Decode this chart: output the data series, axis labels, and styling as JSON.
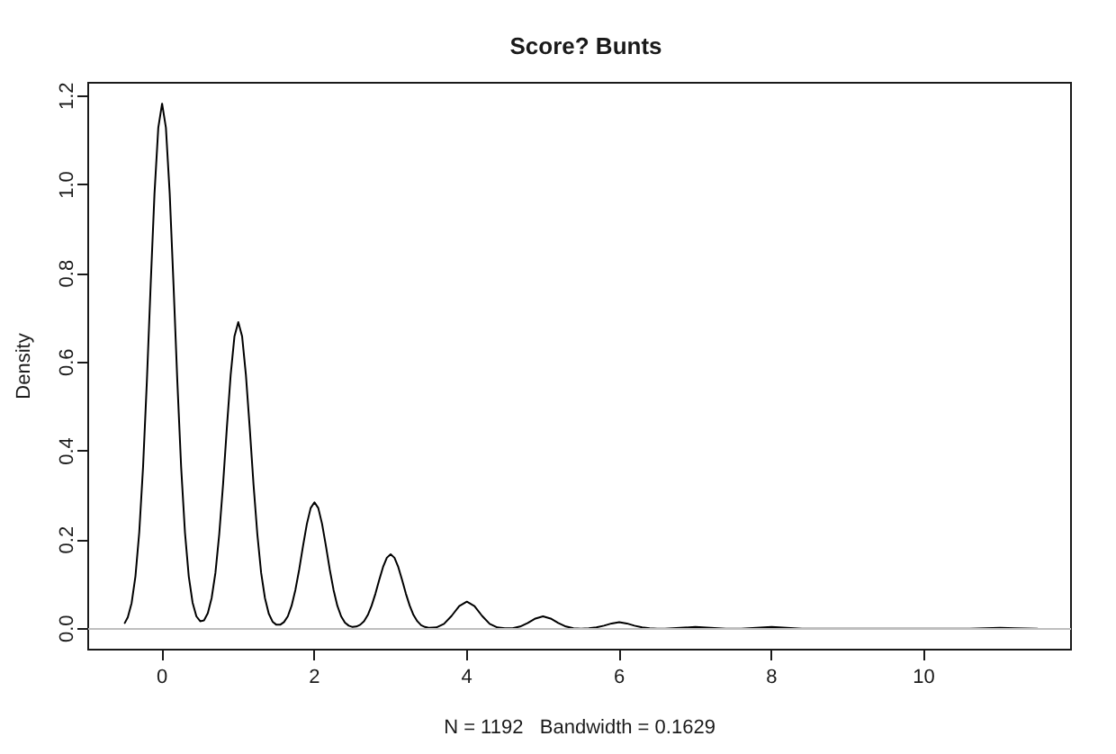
{
  "chart_data": {
    "type": "line",
    "title": "Score? Bunts",
    "xlabel": "N = 1192   Bandwidth = 0.1629",
    "ylabel": "Density",
    "xlim": [
      -0.97,
      11.93
    ],
    "xticks": [
      0,
      2,
      4,
      6,
      8,
      10
    ],
    "ylim": [
      -0.047,
      1.23
    ],
    "yticks": [
      {
        "value": 0,
        "label": "0.0"
      },
      0.2,
      0.4,
      0.6,
      0.8,
      {
        "value": 1,
        "label": "1.0"
      },
      1.2
    ],
    "marker": "none",
    "ref_lines": [
      {
        "axis": "y",
        "value": 0,
        "color": "#bebebe"
      }
    ],
    "x": [
      -0.49,
      -0.45,
      -0.4,
      -0.35,
      -0.3,
      -0.25,
      -0.2,
      -0.15,
      -0.1,
      -0.05,
      0,
      0.05,
      0.1,
      0.15,
      0.2,
      0.25,
      0.3,
      0.35,
      0.4,
      0.45,
      0.5,
      0.55,
      0.6,
      0.65,
      0.7,
      0.75,
      0.8,
      0.85,
      0.9,
      0.95,
      1,
      1.05,
      1.1,
      1.15,
      1.2,
      1.25,
      1.3,
      1.35,
      1.4,
      1.45,
      1.5,
      1.55,
      1.6,
      1.65,
      1.7,
      1.75,
      1.8,
      1.85,
      1.9,
      1.95,
      2,
      2.05,
      2.1,
      2.15,
      2.2,
      2.25,
      2.3,
      2.35,
      2.4,
      2.45,
      2.5,
      2.55,
      2.6,
      2.65,
      2.7,
      2.75,
      2.8,
      2.85,
      2.9,
      2.95,
      3,
      3.05,
      3.1,
      3.15,
      3.2,
      3.25,
      3.3,
      3.35,
      3.4,
      3.45,
      3.5,
      3.6,
      3.7,
      3.8,
      3.9,
      4,
      4.1,
      4.2,
      4.3,
      4.4,
      4.5,
      4.6,
      4.7,
      4.8,
      4.9,
      5,
      5.1,
      5.2,
      5.3,
      5.4,
      5.5,
      5.6,
      5.7,
      5.8,
      5.9,
      6,
      6.1,
      6.2,
      6.3,
      6.4,
      6.5,
      6.6,
      6.8,
      7,
      7.2,
      7.4,
      7.6,
      7.8,
      8,
      8.2,
      8.4,
      10.6,
      10.8,
      11,
      11.2,
      11.49
    ],
    "series": [
      {
        "color": "#000000",
        "values": [
          0.013,
          0.026,
          0.058,
          0.118,
          0.217,
          0.364,
          0.557,
          0.775,
          0.98,
          1.129,
          1.183,
          1.129,
          0.98,
          0.775,
          0.557,
          0.364,
          0.217,
          0.118,
          0.059,
          0.028,
          0.017,
          0.019,
          0.035,
          0.069,
          0.126,
          0.213,
          0.325,
          0.453,
          0.572,
          0.659,
          0.691,
          0.659,
          0.572,
          0.453,
          0.325,
          0.213,
          0.126,
          0.069,
          0.034,
          0.016,
          0.009,
          0.009,
          0.015,
          0.028,
          0.052,
          0.088,
          0.134,
          0.187,
          0.236,
          0.272,
          0.285,
          0.272,
          0.236,
          0.187,
          0.134,
          0.088,
          0.052,
          0.028,
          0.014,
          0.007,
          0.004,
          0.005,
          0.009,
          0.017,
          0.031,
          0.052,
          0.079,
          0.11,
          0.139,
          0.16,
          0.168,
          0.16,
          0.139,
          0.11,
          0.079,
          0.052,
          0.031,
          0.017,
          0.008,
          0.004,
          0.002,
          0.003,
          0.011,
          0.029,
          0.051,
          0.061,
          0.051,
          0.029,
          0.011,
          0.003,
          0.001,
          0.001,
          0.005,
          0.013,
          0.023,
          0.028,
          0.023,
          0.013,
          0.005,
          0.001,
          0,
          0.001,
          0.003,
          0.007,
          0.012,
          0.015,
          0.012,
          0.007,
          0.003,
          0.001,
          0,
          0,
          0.002,
          0.004,
          0.002,
          0,
          0,
          0.002,
          0.004,
          0.002,
          0,
          0,
          0.001,
          0.002,
          0.001,
          0
        ]
      }
    ]
  }
}
